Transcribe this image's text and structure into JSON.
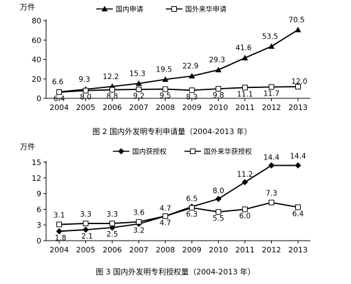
{
  "chart_data": [
    {
      "type": "line",
      "unit": "万件",
      "categories": [
        "2004",
        "2005",
        "2006",
        "2007",
        "2008",
        "2009",
        "2010",
        "2011",
        "2012",
        "2013"
      ],
      "ylim": [
        0,
        80
      ],
      "yticks": [
        0,
        20,
        40,
        60,
        80
      ],
      "series": [
        {
          "name": "国内申请",
          "marker": "triangle",
          "values": [
            6.6,
            9.3,
            12.2,
            15.3,
            19.5,
            22.9,
            29.3,
            41.6,
            53.5,
            70.5
          ]
        },
        {
          "name": "国外来华申请",
          "marker": "square",
          "values": [
            6.4,
            8.0,
            8.8,
            9.2,
            9.5,
            8.3,
            9.8,
            11.1,
            11.7,
            12.0
          ]
        }
      ],
      "caption": "图 2   国内外发明专利申请量（2004-2013 年）"
    },
    {
      "type": "line",
      "unit": "万件",
      "categories": [
        "2004",
        "2005",
        "2006",
        "2007",
        "2008",
        "2009",
        "2010",
        "2011",
        "2012",
        "2013"
      ],
      "ylim": [
        0,
        15
      ],
      "yticks": [
        0,
        3,
        6,
        9,
        12,
        15
      ],
      "series": [
        {
          "name": "国内获授权",
          "marker": "diamond",
          "values": [
            1.8,
            2.1,
            2.5,
            3.2,
            4.7,
            6.5,
            8.0,
            11.2,
            14.4,
            14.4
          ]
        },
        {
          "name": "国外来华获授权",
          "marker": "square",
          "values": [
            3.1,
            3.3,
            3.3,
            3.6,
            4.7,
            6.3,
            5.5,
            6.0,
            7.3,
            6.4
          ]
        }
      ],
      "caption": "图 3   国内外发明专利授权量（2004-2013 年）"
    }
  ]
}
